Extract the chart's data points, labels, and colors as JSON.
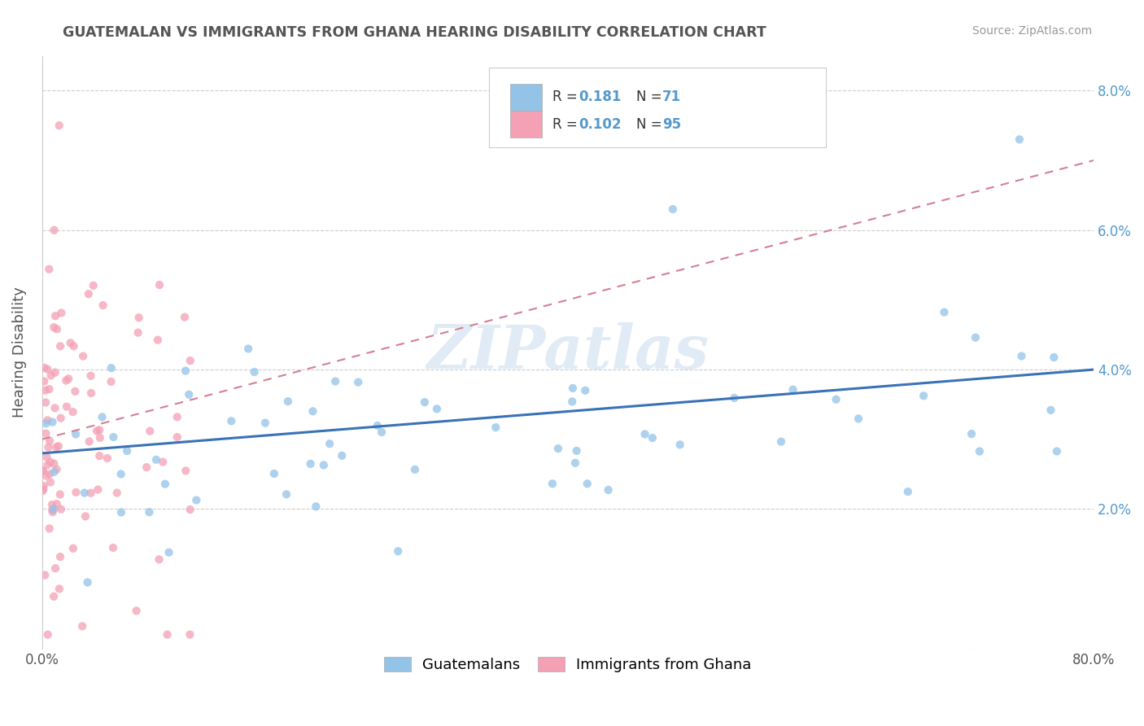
{
  "title": "GUATEMALAN VS IMMIGRANTS FROM GHANA HEARING DISABILITY CORRELATION CHART",
  "source": "Source: ZipAtlas.com",
  "ylabel": "Hearing Disability",
  "xlim": [
    0,
    0.8
  ],
  "ylim": [
    0,
    0.085
  ],
  "yticks": [
    0.0,
    0.02,
    0.04,
    0.06,
    0.08
  ],
  "ytick_labels_right": [
    "",
    "2.0%",
    "4.0%",
    "6.0%",
    "8.0%"
  ],
  "xtick_labels": [
    "0.0%",
    "80.0%"
  ],
  "guatemalan_color": "#93C4E8",
  "ghana_color": "#F4A0B5",
  "trendline_color_guatemalan": "#3A72B8",
  "trendline_color_ghana": "#D48090",
  "R_guatemalan": 0.181,
  "N_guatemalan": 71,
  "R_ghana": 0.102,
  "N_ghana": 95,
  "watermark_text": "ZIPatlas",
  "tick_color": "#5599CC",
  "title_color": "#555555",
  "source_color": "#999999"
}
